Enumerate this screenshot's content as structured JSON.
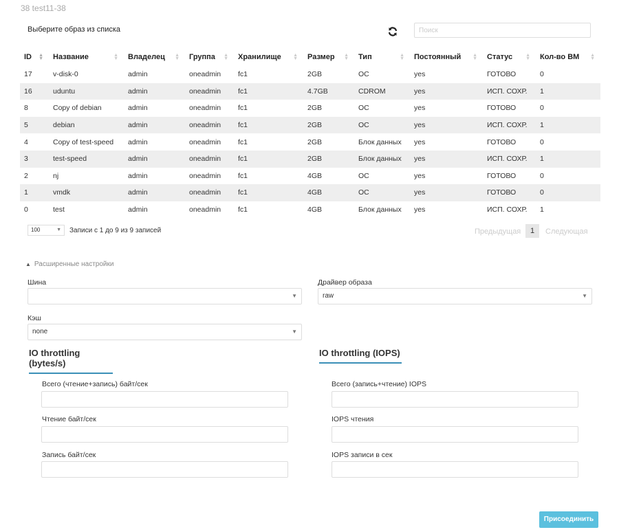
{
  "breadcrumb": "38 test11-38",
  "title": "Выберите образ из списка",
  "search": {
    "placeholder": "Поиск"
  },
  "table": {
    "columns": [
      "ID",
      "Название",
      "Владелец",
      "Группа",
      "Хранилище",
      "Размер",
      "Тип",
      "Постоянный",
      "Статус",
      "Кол-во ВМ"
    ],
    "rows": [
      [
        "17",
        "v-disk-0",
        "admin",
        "oneadmin",
        "fc1",
        "2GB",
        "OC",
        "yes",
        "ГОТОВО",
        "0"
      ],
      [
        "16",
        "uduntu",
        "admin",
        "oneadmin",
        "fc1",
        "4.7GB",
        "CDROM",
        "yes",
        "ИСП. СОХР.",
        "1"
      ],
      [
        "8",
        "Copy of debian",
        "admin",
        "oneadmin",
        "fc1",
        "2GB",
        "OC",
        "yes",
        "ГОТОВО",
        "0"
      ],
      [
        "5",
        "debian",
        "admin",
        "oneadmin",
        "fc1",
        "2GB",
        "OC",
        "yes",
        "ИСП. СОХР.",
        "1"
      ],
      [
        "4",
        "Copy of test-speed",
        "admin",
        "oneadmin",
        "fc1",
        "2GB",
        "Блок данных",
        "yes",
        "ГОТОВО",
        "0"
      ],
      [
        "3",
        "test-speed",
        "admin",
        "oneadmin",
        "fc1",
        "2GB",
        "Блок данных",
        "yes",
        "ИСП. СОХР.",
        "1"
      ],
      [
        "2",
        "nj",
        "admin",
        "oneadmin",
        "fc1",
        "4GB",
        "OC",
        "yes",
        "ГОТОВО",
        "0"
      ],
      [
        "1",
        "vmdk",
        "admin",
        "oneadmin",
        "fc1",
        "4GB",
        "OC",
        "yes",
        "ГОТОВО",
        "0"
      ],
      [
        "0",
        "test",
        "admin",
        "oneadmin",
        "fc1",
        "4GB",
        "Блок данных",
        "yes",
        "ИСП. СОХР.",
        "1"
      ]
    ]
  },
  "pagination": {
    "page_size": "100",
    "info": "Записи с 1 до 9 из 9 записей",
    "prev": "Предыдущая",
    "page": "1",
    "next": "Следующая"
  },
  "advanced": {
    "label": "Расширенные настройки",
    "bus_label": "Шина",
    "bus_value": "",
    "driver_label": "Драйвер образа",
    "driver_value": "raw",
    "cache_label": "Кэш",
    "cache_value": "none"
  },
  "throttling_bytes": {
    "title": "IO throttling (bytes/s)",
    "total": "Всего (чтение+запись) байт/сек",
    "read": "Чтение байт/сек",
    "write": "Запись байт/сек"
  },
  "throttling_iops": {
    "title": "IO throttling (IOPS)",
    "total": "Всего (запись+чтение) IOPS",
    "read": "IOPS чтения",
    "write": "IOPS записи в сек"
  },
  "attach_button": "Присоединить"
}
